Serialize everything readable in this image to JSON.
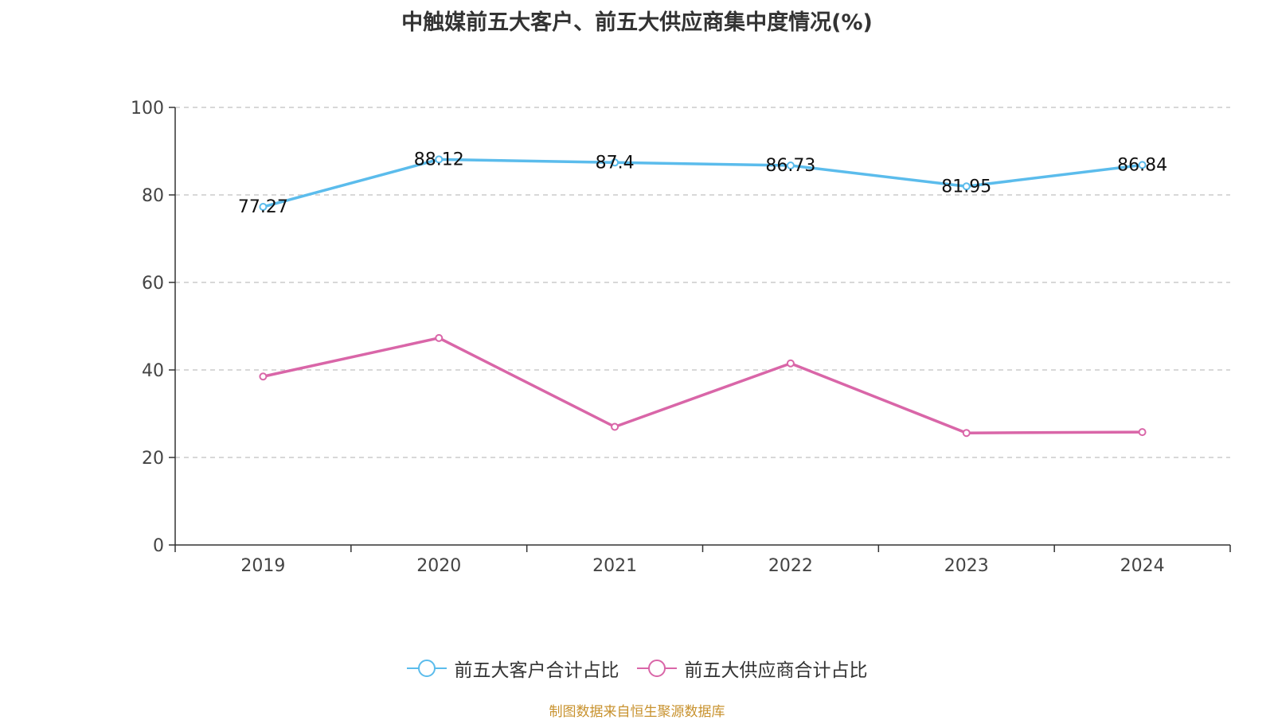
{
  "chart_data": {
    "type": "line",
    "title": "中触媒前五大客户、前五大供应商集中度情况(%)",
    "categories": [
      "2019",
      "2020",
      "2021",
      "2022",
      "2023",
      "2024"
    ],
    "ylim": [
      0,
      100
    ],
    "yticks": [
      0,
      20,
      40,
      60,
      80,
      100
    ],
    "grid": true,
    "legend_position": "bottom",
    "series": [
      {
        "name": "前五大客户合计占比",
        "color": "#5bbcec",
        "values": [
          77.27,
          88.12,
          87.4,
          86.73,
          81.95,
          86.84
        ],
        "labels": [
          "77.27",
          "88.12",
          "87.4",
          "86.73",
          "81.95",
          "86.84"
        ],
        "show_labels": true
      },
      {
        "name": "前五大供应商合计占比",
        "color": "#d966a8",
        "values": [
          38.5,
          47.3,
          27.0,
          41.5,
          25.6,
          25.8
        ],
        "show_labels": false
      }
    ]
  },
  "source_note": "制图数据来自恒生聚源数据库"
}
